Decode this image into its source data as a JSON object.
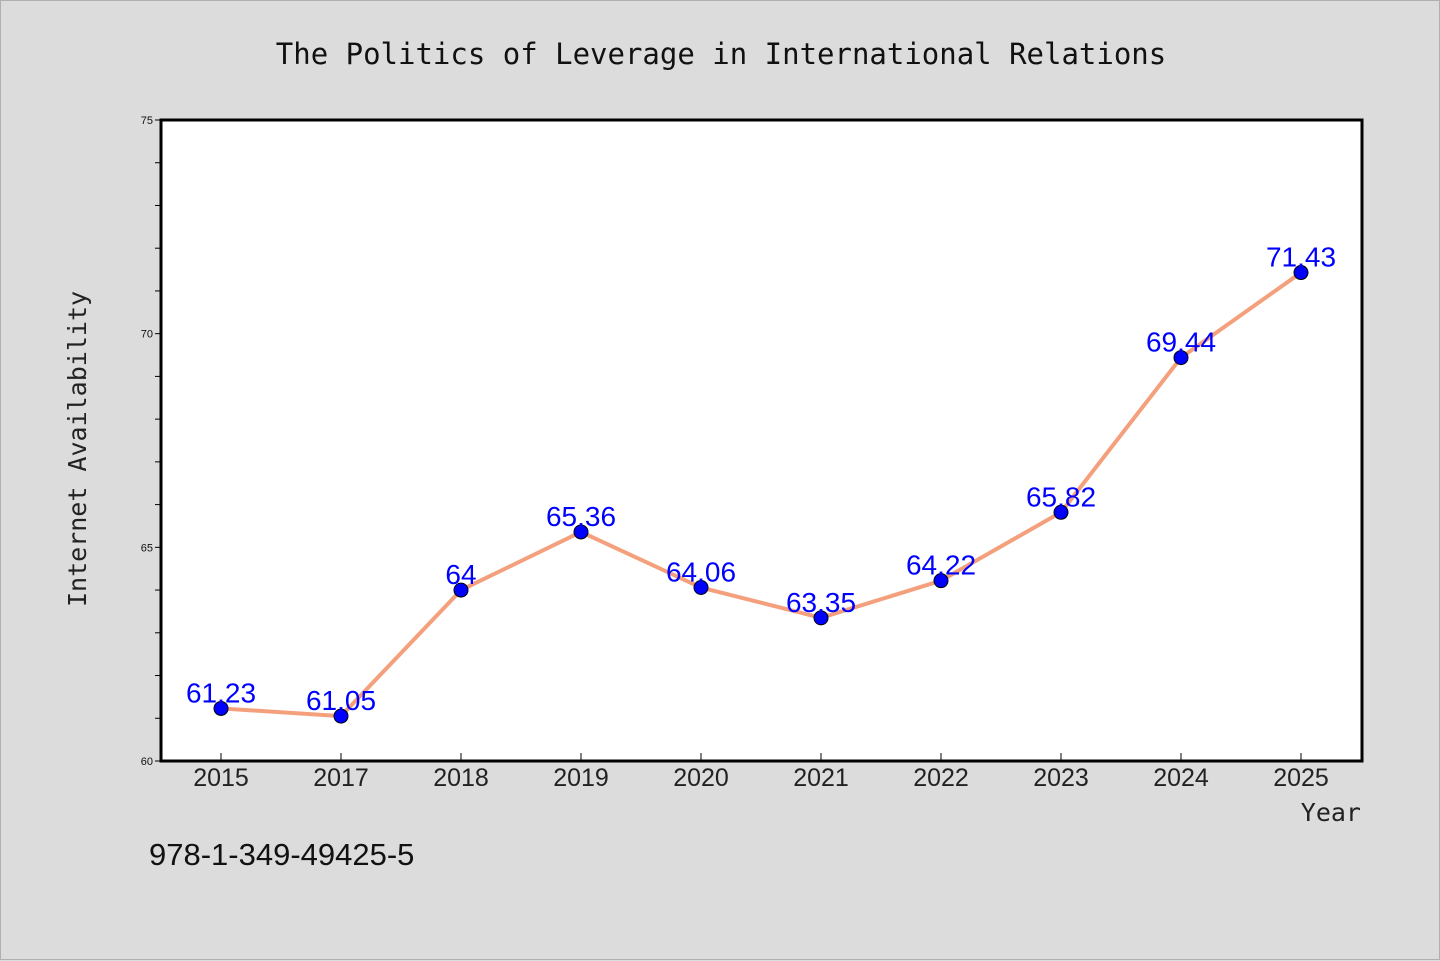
{
  "chart_data": {
    "type": "line",
    "title": "The Politics of Leverage in International Relations",
    "xlabel": "Year",
    "ylabel": "Internet Availability",
    "categories": [
      "2015",
      "2017",
      "2018",
      "2019",
      "2020",
      "2021",
      "2022",
      "2023",
      "2024",
      "2025"
    ],
    "series": [
      {
        "values": [
          61.23,
          61.05,
          64,
          65.36,
          64.06,
          63.35,
          64.22,
          65.82,
          69.44,
          71.43
        ],
        "labels": [
          "61.23",
          "61.05",
          "64",
          "65.36",
          "64.06",
          "63.35",
          "64.22",
          "65.82",
          "69.44",
          "71.43"
        ],
        "line_color": "#f4a07c",
        "marker_color": "#0000ff"
      }
    ],
    "ylim": [
      60,
      75
    ],
    "y_ticks": [
      "60",
      "65",
      "70",
      "75"
    ],
    "y_minor_step": 1,
    "grid": false,
    "legend": "none"
  },
  "footer": {
    "isbn": "978-1-349-49425-5"
  }
}
